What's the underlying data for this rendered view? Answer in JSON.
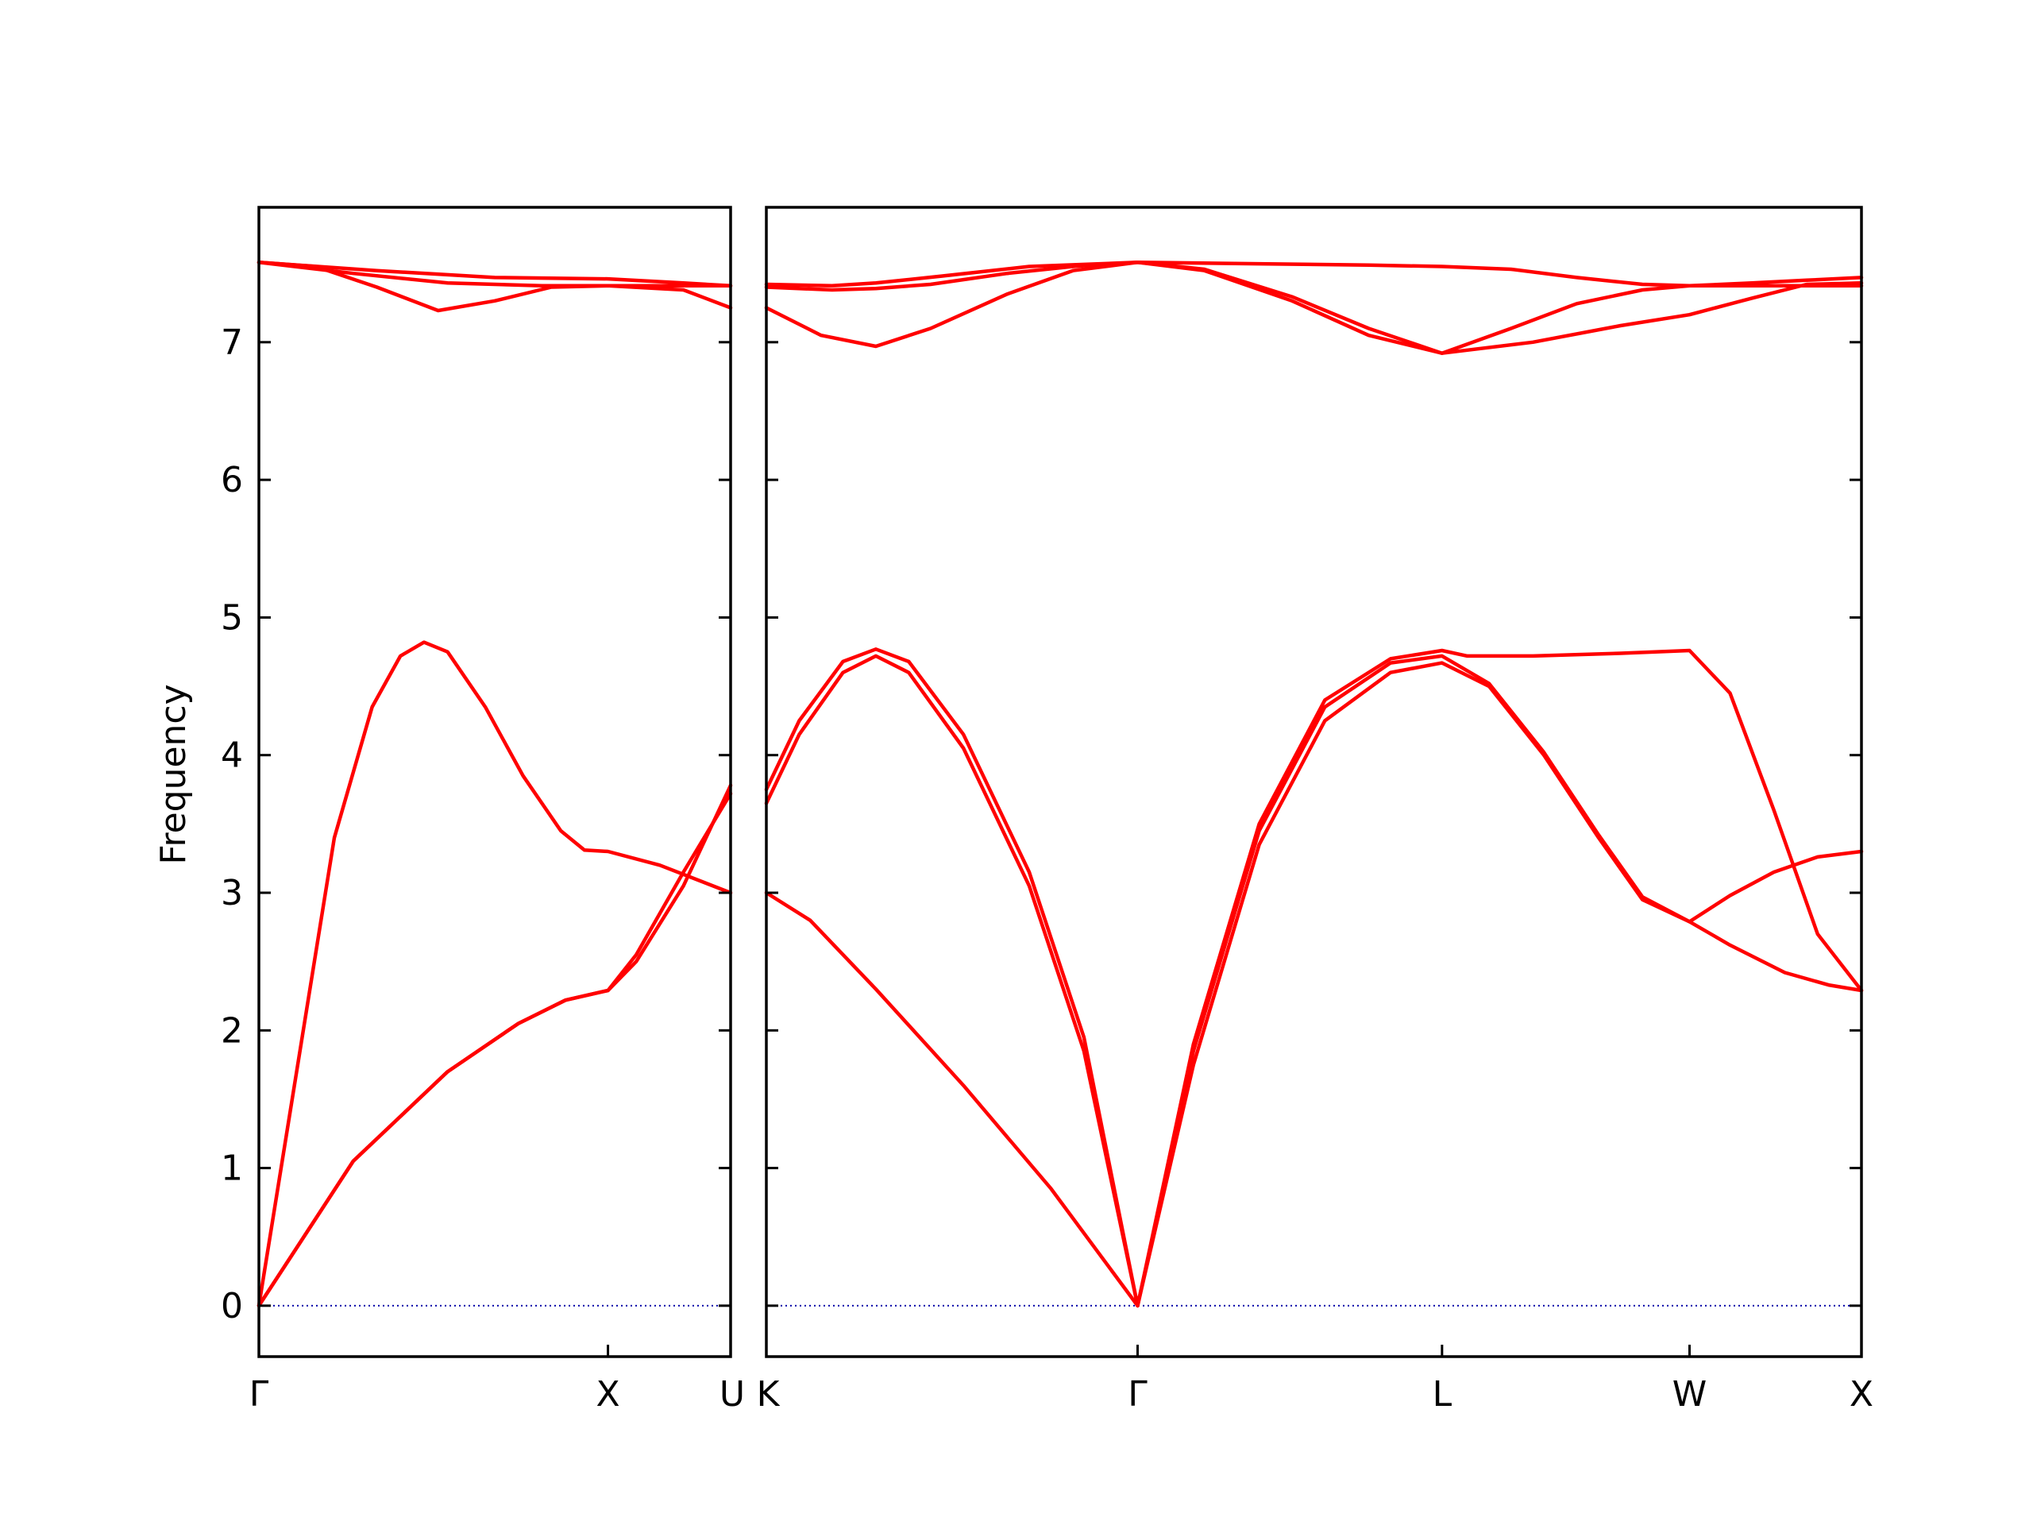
{
  "chart_data": {
    "type": "line",
    "title": "",
    "ylabel": "Frequency",
    "xlabel": "",
    "ylim": [
      -0.37,
      7.98
    ],
    "yticks": [
      0,
      1,
      2,
      3,
      4,
      5,
      6,
      7
    ],
    "grid": false,
    "legend": "none",
    "series_color": "#ff0000",
    "zero_line_color": "#0000aa",
    "panels": [
      {
        "x_range": [
          0,
          1
        ],
        "tick_positions": [
          0,
          0.74,
          1
        ],
        "tick_labels": [
          "Γ",
          "X",
          "U"
        ],
        "series": [
          {
            "points": [
              [
                0,
                0
              ],
              [
                0.2,
                1.05
              ],
              [
                0.4,
                1.7
              ],
              [
                0.55,
                2.05
              ],
              [
                0.65,
                2.22
              ],
              [
                0.74,
                2.29
              ],
              [
                0.8,
                2.5
              ],
              [
                0.9,
                3.05
              ],
              [
                1,
                3.78
              ]
            ]
          },
          {
            "points": [
              [
                0,
                0
              ],
              [
                0.08,
                1.7
              ],
              [
                0.16,
                3.4
              ],
              [
                0.24,
                4.35
              ],
              [
                0.3,
                4.72
              ],
              [
                0.35,
                4.82
              ],
              [
                0.4,
                4.75
              ],
              [
                0.48,
                4.35
              ],
              [
                0.56,
                3.85
              ],
              [
                0.64,
                3.45
              ],
              [
                0.69,
                3.31
              ],
              [
                0.74,
                3.3
              ],
              [
                0.85,
                3.2
              ],
              [
                1,
                3.0
              ]
            ]
          },
          {
            "points": [
              [
                0,
                0
              ],
              [
                0.2,
                1.05
              ],
              [
                0.4,
                1.7
              ],
              [
                0.55,
                2.05
              ],
              [
                0.65,
                2.22
              ],
              [
                0.74,
                2.29
              ],
              [
                0.8,
                2.55
              ],
              [
                0.9,
                3.15
              ],
              [
                1,
                3.72
              ]
            ]
          },
          {
            "points": [
              [
                0,
                7.58
              ],
              [
                0.12,
                7.55
              ],
              [
                0.25,
                7.4
              ],
              [
                0.38,
                7.23
              ],
              [
                0.5,
                7.3
              ],
              [
                0.62,
                7.4
              ],
              [
                0.74,
                7.41
              ],
              [
                0.9,
                7.38
              ],
              [
                1,
                7.25
              ]
            ]
          },
          {
            "points": [
              [
                0,
                7.58
              ],
              [
                0.25,
                7.52
              ],
              [
                0.5,
                7.47
              ],
              [
                0.74,
                7.46
              ],
              [
                0.9,
                7.43
              ],
              [
                1,
                7.41
              ]
            ]
          },
          {
            "points": [
              [
                0,
                7.58
              ],
              [
                0.2,
                7.5
              ],
              [
                0.4,
                7.43
              ],
              [
                0.6,
                7.41
              ],
              [
                0.8,
                7.41
              ],
              [
                1,
                7.41
              ]
            ]
          }
        ]
      },
      {
        "x_range": [
          0,
          1
        ],
        "tick_positions": [
          0,
          0.339,
          0.617,
          0.843,
          1
        ],
        "tick_labels": [
          "K",
          "Γ",
          "L",
          "W",
          "X"
        ],
        "series": [
          {
            "points": [
              [
                0,
                3.0
              ],
              [
                0.04,
                2.8
              ],
              [
                0.1,
                2.3
              ],
              [
                0.18,
                1.6
              ],
              [
                0.26,
                0.85
              ],
              [
                0.339,
                0
              ]
            ]
          },
          {
            "points": [
              [
                0,
                3.65
              ],
              [
                0.03,
                4.15
              ],
              [
                0.07,
                4.6
              ],
              [
                0.1,
                4.72
              ],
              [
                0.13,
                4.6
              ],
              [
                0.18,
                4.05
              ],
              [
                0.24,
                3.05
              ],
              [
                0.29,
                1.85
              ],
              [
                0.339,
                0
              ]
            ]
          },
          {
            "points": [
              [
                0,
                3.75
              ],
              [
                0.03,
                4.25
              ],
              [
                0.07,
                4.68
              ],
              [
                0.1,
                4.77
              ],
              [
                0.13,
                4.68
              ],
              [
                0.18,
                4.15
              ],
              [
                0.24,
                3.15
              ],
              [
                0.29,
                1.95
              ],
              [
                0.339,
                0
              ]
            ]
          },
          {
            "points": [
              [
                0.339,
                0
              ],
              [
                0.39,
                1.75
              ],
              [
                0.45,
                3.35
              ],
              [
                0.51,
                4.25
              ],
              [
                0.57,
                4.6
              ],
              [
                0.617,
                4.67
              ],
              [
                0.66,
                4.5
              ],
              [
                0.71,
                4.0
              ],
              [
                0.76,
                3.4
              ],
              [
                0.8,
                2.95
              ],
              [
                0.843,
                2.79
              ],
              [
                0.88,
                2.62
              ],
              [
                0.93,
                2.42
              ],
              [
                0.97,
                2.33
              ],
              [
                1,
                2.29
              ]
            ]
          },
          {
            "points": [
              [
                0.339,
                0
              ],
              [
                0.39,
                1.85
              ],
              [
                0.45,
                3.45
              ],
              [
                0.51,
                4.35
              ],
              [
                0.57,
                4.67
              ],
              [
                0.617,
                4.72
              ],
              [
                0.66,
                4.52
              ],
              [
                0.71,
                4.02
              ],
              [
                0.76,
                3.42
              ],
              [
                0.8,
                2.97
              ],
              [
                0.843,
                2.79
              ],
              [
                0.88,
                2.98
              ],
              [
                0.92,
                3.15
              ],
              [
                0.96,
                3.26
              ],
              [
                1,
                3.3
              ]
            ]
          },
          {
            "points": [
              [
                0.339,
                0
              ],
              [
                0.39,
                1.9
              ],
              [
                0.45,
                3.5
              ],
              [
                0.51,
                4.4
              ],
              [
                0.57,
                4.7
              ],
              [
                0.617,
                4.76
              ],
              [
                0.64,
                4.72
              ],
              [
                0.7,
                4.72
              ],
              [
                0.78,
                4.74
              ],
              [
                0.843,
                4.76
              ],
              [
                0.88,
                4.45
              ],
              [
                0.92,
                3.6
              ],
              [
                0.96,
                2.7
              ],
              [
                1,
                2.29
              ]
            ]
          },
          {
            "points": [
              [
                0,
                7.25
              ],
              [
                0.05,
                7.05
              ],
              [
                0.1,
                6.97
              ],
              [
                0.15,
                7.1
              ],
              [
                0.22,
                7.35
              ],
              [
                0.28,
                7.52
              ],
              [
                0.339,
                7.58
              ],
              [
                0.4,
                7.52
              ],
              [
                0.48,
                7.3
              ],
              [
                0.55,
                7.05
              ],
              [
                0.617,
                6.92
              ],
              [
                0.7,
                7.0
              ],
              [
                0.78,
                7.12
              ],
              [
                0.843,
                7.2
              ],
              [
                0.9,
                7.32
              ],
              [
                0.95,
                7.42
              ],
              [
                1,
                7.43
              ]
            ]
          },
          {
            "points": [
              [
                0,
                7.4
              ],
              [
                0.06,
                7.38
              ],
              [
                0.1,
                7.39
              ],
              [
                0.15,
                7.42
              ],
              [
                0.22,
                7.5
              ],
              [
                0.28,
                7.55
              ],
              [
                0.339,
                7.58
              ],
              [
                0.4,
                7.53
              ],
              [
                0.48,
                7.33
              ],
              [
                0.55,
                7.1
              ],
              [
                0.617,
                6.92
              ],
              [
                0.68,
                7.1
              ],
              [
                0.74,
                7.28
              ],
              [
                0.8,
                7.38
              ],
              [
                0.843,
                7.41
              ],
              [
                0.9,
                7.43
              ],
              [
                0.95,
                7.45
              ],
              [
                1,
                7.47
              ]
            ]
          },
          {
            "points": [
              [
                0,
                7.42
              ],
              [
                0.06,
                7.41
              ],
              [
                0.1,
                7.43
              ],
              [
                0.16,
                7.48
              ],
              [
                0.24,
                7.55
              ],
              [
                0.339,
                7.58
              ],
              [
                0.45,
                7.57
              ],
              [
                0.55,
                7.56
              ],
              [
                0.617,
                7.55
              ],
              [
                0.68,
                7.53
              ],
              [
                0.74,
                7.47
              ],
              [
                0.8,
                7.42
              ],
              [
                0.843,
                7.41
              ],
              [
                0.92,
                7.41
              ],
              [
                1,
                7.41
              ]
            ]
          }
        ]
      }
    ]
  }
}
